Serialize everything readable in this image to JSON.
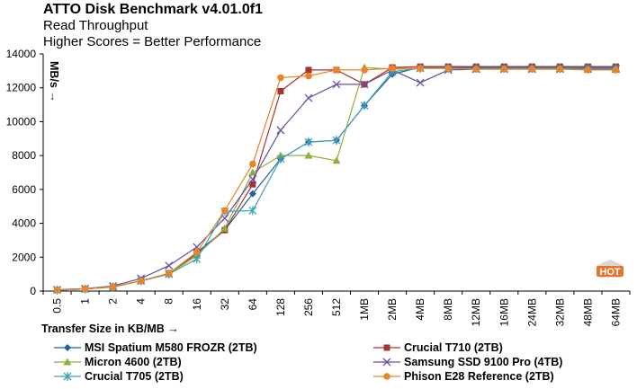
{
  "header": {
    "title": "ATTO Disk Benchmark v4.01.0f1",
    "subtitle": "Read Throughput",
    "note": "Higher Scores = Better Performance"
  },
  "badge": {
    "label": "HOT",
    "color": "#e8742a"
  },
  "chart_data": {
    "type": "line",
    "title": "ATTO Disk Benchmark v4.01.0f1",
    "subtitle": "Read Throughput",
    "xlabel": "Transfer Size in KB/MB →",
    "ylabel": "MB/s →",
    "ylim": [
      0,
      14000
    ],
    "yticks": [
      0,
      2000,
      4000,
      6000,
      8000,
      10000,
      12000,
      14000
    ],
    "ytick_labels": [
      "0",
      "2000",
      "4000",
      "6000",
      "8000",
      "10000",
      "12000",
      "14000"
    ],
    "grid": false,
    "legend_position": "bottom",
    "categories": [
      "0.5",
      "1",
      "2",
      "4",
      "8",
      "16",
      "32",
      "64",
      "128",
      "256",
      "512",
      "1MB",
      "2MB",
      "4MB",
      "8MB",
      "12MB",
      "16MB",
      "24MB",
      "32MB",
      "48MB",
      "64MB"
    ],
    "series": [
      {
        "name": "MSI Spatium M580 FROZR (2TB)",
        "color": "#1f5fa8",
        "marker": "diamond",
        "values": [
          60,
          120,
          250,
          600,
          1000,
          2300,
          3600,
          5750,
          7800,
          8800,
          8900,
          10950,
          12800,
          13200,
          13200,
          13200,
          13200,
          13200,
          13200,
          13200,
          13200
        ]
      },
      {
        "name": "Crucial T710 (2TB)",
        "color": "#a83232",
        "marker": "square",
        "values": [
          60,
          120,
          250,
          600,
          1050,
          2200,
          3600,
          6300,
          11800,
          13050,
          13050,
          12200,
          13200,
          13250,
          13250,
          13250,
          13250,
          13250,
          13250,
          13250,
          13250
        ]
      },
      {
        "name": "Micron 4600 (2TB)",
        "color": "#8fad3c",
        "marker": "triangle",
        "values": [
          60,
          120,
          230,
          600,
          1000,
          2100,
          3700,
          7000,
          8000,
          8000,
          7700,
          13200,
          13100,
          13150,
          13150,
          13100,
          13150,
          13150,
          13150,
          13150,
          13150
        ]
      },
      {
        "name": "Samsung SSD 9100 Pro (4TB)",
        "color": "#6b4f9e",
        "marker": "x",
        "values": [
          80,
          150,
          300,
          750,
          1500,
          2600,
          4300,
          6600,
          9500,
          11400,
          12200,
          12200,
          13050,
          12300,
          13050,
          13100,
          13100,
          13100,
          13100,
          13100,
          13100
        ]
      },
      {
        "name": "Crucial T705 (2TB)",
        "color": "#3ea0b8",
        "marker": "star",
        "values": [
          60,
          120,
          250,
          600,
          1000,
          1900,
          4700,
          4750,
          7800,
          8800,
          8900,
          10950,
          12950,
          13150,
          13150,
          13150,
          13150,
          13150,
          13150,
          13150,
          13150
        ]
      },
      {
        "name": "Phison E28 Reference (2TB)",
        "color": "#e8842a",
        "marker": "circle",
        "values": [
          60,
          130,
          250,
          600,
          1050,
          2300,
          4750,
          7500,
          12600,
          12700,
          13050,
          13050,
          13150,
          13150,
          13150,
          13100,
          13100,
          13100,
          13100,
          13050,
          13050
        ]
      }
    ]
  }
}
